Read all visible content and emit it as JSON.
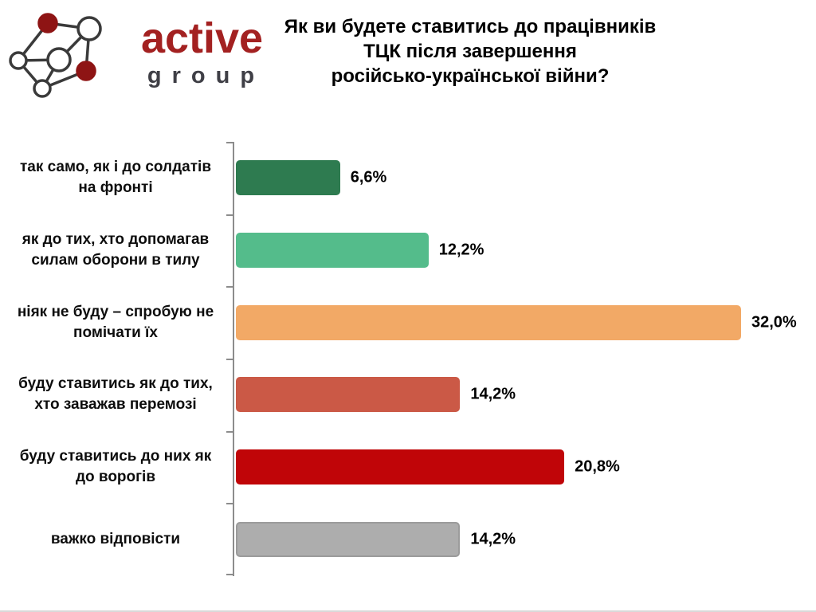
{
  "logo": {
    "name": "active",
    "subname": "group",
    "name_color": "#A32121",
    "subname_color": "#3F3F46",
    "node_red_color": "#8E1414",
    "edge_color": "#3A3A3A"
  },
  "title": {
    "lines": [
      "Як ви будете ставитись до працівників",
      "ТЦК після завершення",
      "російсько-української війни?"
    ]
  },
  "chart_data": {
    "type": "bar",
    "orientation": "horizontal",
    "title": "Як ви будете ставитись до працівників ТЦК після завершення російсько-української війни?",
    "categories": [
      "так само, як і до солдатів на фронті",
      "як до тих, хто допомагав силам оборони в тилу",
      "ніяк не буду – спробую не помічати їх",
      "буду ставитись як до тих, хто заважав перемозі",
      "буду ставитись до них як до ворогів",
      "важко відповісти"
    ],
    "values": [
      6.6,
      12.2,
      32.0,
      14.2,
      20.8,
      14.2
    ],
    "value_labels": [
      "6,6%",
      "12,2%",
      "32,0%",
      "14,2%",
      "20,8%",
      "14,2%"
    ],
    "colors": [
      "#2E7B50",
      "#54BC8B",
      "#F2A966",
      "#CB5946",
      "#C00508",
      "#ADADAD"
    ],
    "bar_borders": [
      null,
      null,
      null,
      null,
      null,
      "#9B9B9B"
    ],
    "unit": "%",
    "xlim": [
      0,
      32
    ],
    "grid": false,
    "legend": false,
    "axis_color": "#8C8C8C"
  }
}
